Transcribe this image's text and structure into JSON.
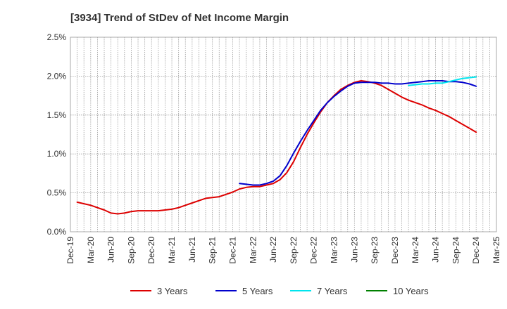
{
  "chart_data": {
    "type": "line",
    "title": "[3934]  Trend of StDev of Net Income Margin",
    "xlabel": "",
    "ylabel": "",
    "ylim": [
      0,
      2.5
    ],
    "y_ticks": [
      "0.0%",
      "0.5%",
      "1.0%",
      "1.5%",
      "2.0%",
      "2.5%"
    ],
    "x_tick_labels": [
      "Dec-19",
      "Mar-20",
      "Jun-20",
      "Sep-20",
      "Dec-20",
      "Mar-21",
      "Jun-21",
      "Sep-21",
      "Dec-21",
      "Mar-22",
      "Jun-22",
      "Sep-22",
      "Dec-22",
      "Mar-23",
      "Jun-23",
      "Sep-23",
      "Dec-23",
      "Mar-24",
      "Jun-24",
      "Sep-24",
      "Dec-24",
      "Mar-25"
    ],
    "grid": true,
    "legend_position": "bottom",
    "series": [
      {
        "name": "3 Years",
        "color": "#dd0000",
        "points": [
          [
            "Jan-20",
            0.38
          ],
          [
            "Feb-20",
            0.36
          ],
          [
            "Mar-20",
            0.34
          ],
          [
            "Apr-20",
            0.31
          ],
          [
            "May-20",
            0.28
          ],
          [
            "Jun-20",
            0.24
          ],
          [
            "Jul-20",
            0.23
          ],
          [
            "Aug-20",
            0.24
          ],
          [
            "Sep-20",
            0.26
          ],
          [
            "Oct-20",
            0.27
          ],
          [
            "Nov-20",
            0.27
          ],
          [
            "Dec-20",
            0.27
          ],
          [
            "Jan-21",
            0.27
          ],
          [
            "Feb-21",
            0.28
          ],
          [
            "Mar-21",
            0.29
          ],
          [
            "Apr-21",
            0.31
          ],
          [
            "May-21",
            0.34
          ],
          [
            "Jun-21",
            0.37
          ],
          [
            "Jul-21",
            0.4
          ],
          [
            "Aug-21",
            0.43
          ],
          [
            "Sep-21",
            0.44
          ],
          [
            "Oct-21",
            0.45
          ],
          [
            "Nov-21",
            0.48
          ],
          [
            "Dec-21",
            0.51
          ],
          [
            "Jan-22",
            0.55
          ],
          [
            "Feb-22",
            0.57
          ],
          [
            "Mar-22",
            0.58
          ],
          [
            "Apr-22",
            0.58
          ],
          [
            "May-22",
            0.6
          ],
          [
            "Jun-22",
            0.62
          ],
          [
            "Jul-22",
            0.67
          ],
          [
            "Aug-22",
            0.76
          ],
          [
            "Sep-22",
            0.9
          ],
          [
            "Oct-22",
            1.08
          ],
          [
            "Nov-22",
            1.25
          ],
          [
            "Dec-22",
            1.4
          ],
          [
            "Jan-23",
            1.54
          ],
          [
            "Feb-23",
            1.66
          ],
          [
            "Mar-23",
            1.75
          ],
          [
            "Apr-23",
            1.83
          ],
          [
            "May-23",
            1.88
          ],
          [
            "Jun-23",
            1.92
          ],
          [
            "Jul-23",
            1.94
          ],
          [
            "Aug-23",
            1.93
          ],
          [
            "Sep-23",
            1.91
          ],
          [
            "Oct-23",
            1.88
          ],
          [
            "Nov-23",
            1.83
          ],
          [
            "Dec-23",
            1.78
          ],
          [
            "Jan-24",
            1.73
          ],
          [
            "Feb-24",
            1.69
          ],
          [
            "Mar-24",
            1.66
          ],
          [
            "Apr-24",
            1.63
          ],
          [
            "May-24",
            1.59
          ],
          [
            "Jun-24",
            1.56
          ],
          [
            "Jul-24",
            1.52
          ],
          [
            "Aug-24",
            1.48
          ],
          [
            "Sep-24",
            1.43
          ],
          [
            "Oct-24",
            1.38
          ],
          [
            "Nov-24",
            1.33
          ],
          [
            "Dec-24",
            1.28
          ]
        ]
      },
      {
        "name": "5 Years",
        "color": "#0000cc",
        "points": [
          [
            "Jan-22",
            0.62
          ],
          [
            "Feb-22",
            0.61
          ],
          [
            "Mar-22",
            0.6
          ],
          [
            "Apr-22",
            0.6
          ],
          [
            "May-22",
            0.62
          ],
          [
            "Jun-22",
            0.65
          ],
          [
            "Jul-22",
            0.72
          ],
          [
            "Aug-22",
            0.85
          ],
          [
            "Sep-22",
            1.01
          ],
          [
            "Oct-22",
            1.16
          ],
          [
            "Nov-22",
            1.3
          ],
          [
            "Dec-22",
            1.43
          ],
          [
            "Jan-23",
            1.56
          ],
          [
            "Feb-23",
            1.66
          ],
          [
            "Mar-23",
            1.74
          ],
          [
            "Apr-23",
            1.81
          ],
          [
            "May-23",
            1.87
          ],
          [
            "Jun-23",
            1.91
          ],
          [
            "Jul-23",
            1.92
          ],
          [
            "Aug-23",
            1.92
          ],
          [
            "Sep-23",
            1.92
          ],
          [
            "Oct-23",
            1.91
          ],
          [
            "Nov-23",
            1.91
          ],
          [
            "Dec-23",
            1.9
          ],
          [
            "Jan-24",
            1.9
          ],
          [
            "Feb-24",
            1.91
          ],
          [
            "Mar-24",
            1.92
          ],
          [
            "Apr-24",
            1.93
          ],
          [
            "May-24",
            1.94
          ],
          [
            "Jun-24",
            1.94
          ],
          [
            "Jul-24",
            1.94
          ],
          [
            "Aug-24",
            1.93
          ],
          [
            "Sep-24",
            1.93
          ],
          [
            "Oct-24",
            1.92
          ],
          [
            "Nov-24",
            1.9
          ],
          [
            "Dec-24",
            1.87
          ]
        ]
      },
      {
        "name": "7 Years",
        "color": "#00e5ee",
        "points": [
          [
            "Feb-24",
            1.88
          ],
          [
            "Mar-24",
            1.89
          ],
          [
            "Apr-24",
            1.9
          ],
          [
            "May-24",
            1.9
          ],
          [
            "Jun-24",
            1.91
          ],
          [
            "Jul-24",
            1.91
          ],
          [
            "Aug-24",
            1.93
          ],
          [
            "Sep-24",
            1.95
          ],
          [
            "Oct-24",
            1.97
          ],
          [
            "Nov-24",
            1.98
          ],
          [
            "Dec-24",
            1.99
          ]
        ]
      },
      {
        "name": "10 Years",
        "color": "#008000",
        "points": []
      }
    ]
  }
}
